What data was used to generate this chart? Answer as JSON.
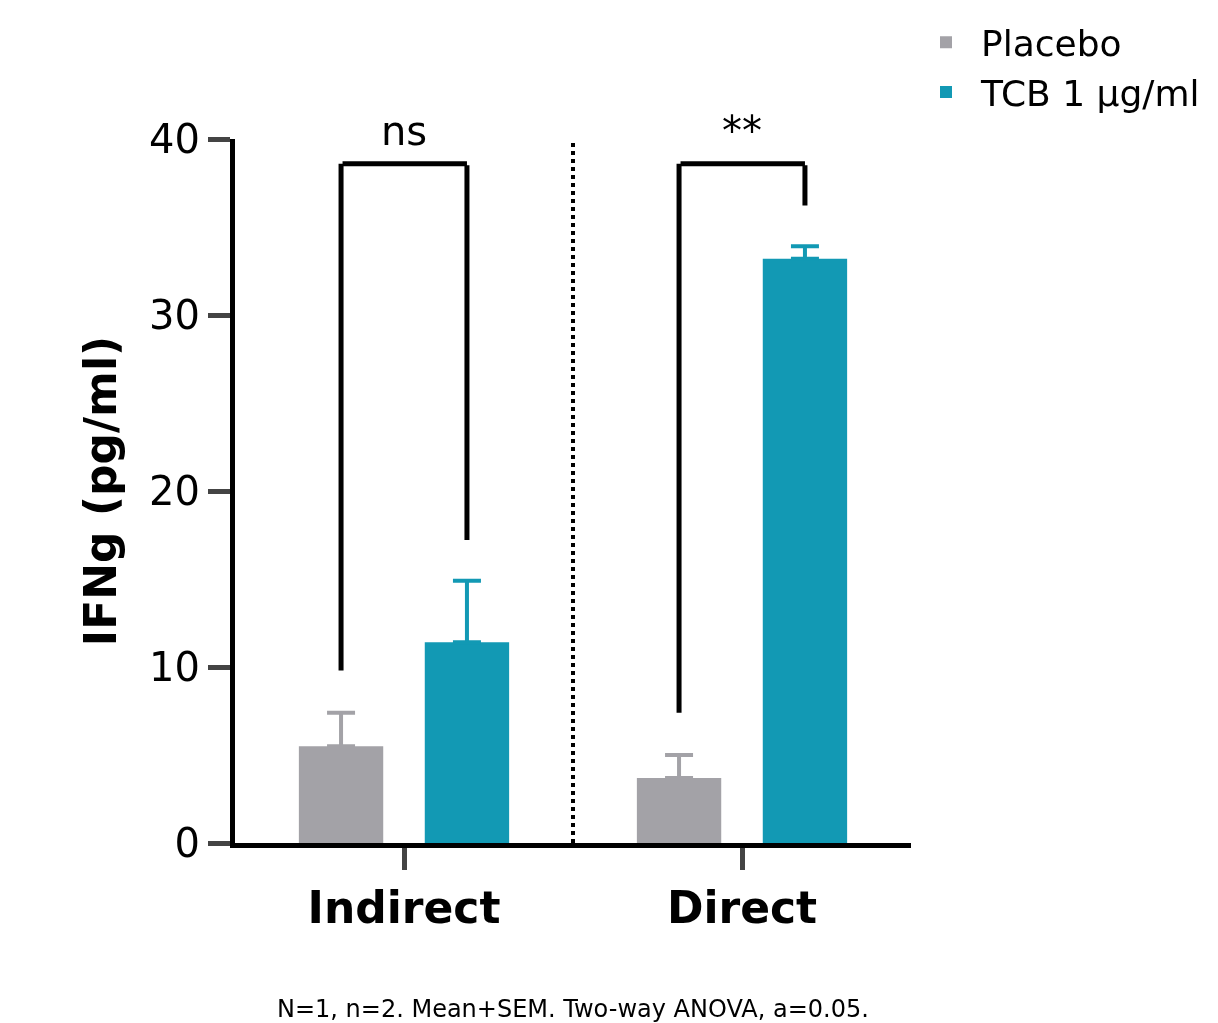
{
  "chart_data": {
    "type": "bar",
    "ylabel": "IFNg (pg/ml)",
    "categories": [
      "Indirect",
      "Direct"
    ],
    "series": [
      {
        "name": "Placebo",
        "color": "#a3a2a7",
        "values": [
          5.5,
          3.7
        ],
        "errors": [
          [
            5.5,
            7.4
          ],
          [
            3.7,
            5.0
          ]
        ]
      },
      {
        "name": "TCB 1 µg/ml",
        "color": "#1299b4",
        "values": [
          11.4,
          33.2
        ],
        "errors": [
          [
            11.4,
            14.9
          ],
          [
            33.2,
            33.9
          ]
        ]
      }
    ],
    "ylim": [
      0,
      40
    ],
    "yticks": [
      0,
      10,
      20,
      30,
      40
    ],
    "legend": "top right",
    "annotations": [
      "ns",
      "**",
      "N=1, n=2. Mean+SEM. Two-way ANOVA, a=0.05."
    ]
  }
}
